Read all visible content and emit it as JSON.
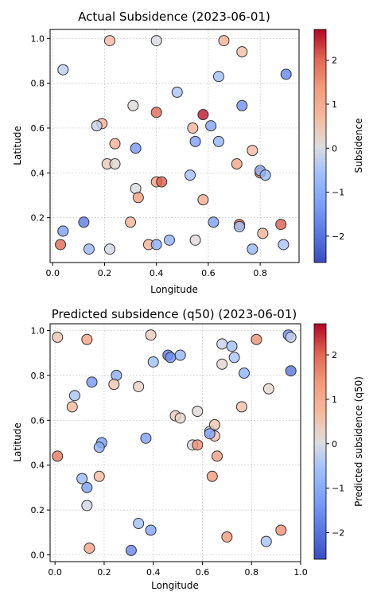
{
  "chart_data": [
    {
      "type": "scatter",
      "title": "Actual Subsidence (2023-06-01)",
      "xlabel": "Longitude",
      "ylabel": "Latitude",
      "colorbar_label": "Subsidence",
      "colormap": "coolwarm",
      "vmin": -2.6,
      "vmax": 2.7,
      "xlim": [
        -0.01,
        0.95
      ],
      "ylim": [
        0.0,
        1.04
      ],
      "xticks": [
        0.0,
        0.2,
        0.4,
        0.6,
        0.8
      ],
      "xtick_labels": [
        "0.0",
        "0.2",
        "0.4",
        "0.6",
        "0.8"
      ],
      "yticks": [
        0.2,
        0.4,
        0.6,
        0.8,
        1.0
      ],
      "ytick_labels": [
        "0.2",
        "0.4",
        "0.6",
        "0.8",
        "1.0"
      ],
      "cbar_ticks": [
        -2,
        -1,
        0,
        1,
        2
      ],
      "cbar_tick_labels": [
        "−2",
        "−1",
        "0",
        "1",
        "2"
      ],
      "grid": true,
      "points": [
        {
          "x": 0.04,
          "y": 0.86,
          "v": -0.3
        },
        {
          "x": 0.22,
          "y": 0.99,
          "v": 0.7
        },
        {
          "x": 0.4,
          "y": 0.99,
          "v": 0.0
        },
        {
          "x": 0.66,
          "y": 0.99,
          "v": 0.9
        },
        {
          "x": 0.73,
          "y": 0.94,
          "v": 0.6
        },
        {
          "x": 0.9,
          "y": 0.84,
          "v": -1.7
        },
        {
          "x": 0.48,
          "y": 0.76,
          "v": -0.5
        },
        {
          "x": 0.64,
          "y": 0.83,
          "v": -0.6
        },
        {
          "x": 0.31,
          "y": 0.7,
          "v": 0.1
        },
        {
          "x": 0.4,
          "y": 0.67,
          "v": 2.0
        },
        {
          "x": 0.58,
          "y": 0.66,
          "v": 2.6
        },
        {
          "x": 0.73,
          "y": 0.7,
          "v": -1.5
        },
        {
          "x": 0.19,
          "y": 0.62,
          "v": 0.9
        },
        {
          "x": 0.17,
          "y": 0.61,
          "v": -0.2
        },
        {
          "x": 0.54,
          "y": 0.6,
          "v": 0.8
        },
        {
          "x": 0.61,
          "y": 0.61,
          "v": -1.2
        },
        {
          "x": 0.24,
          "y": 0.53,
          "v": 0.9
        },
        {
          "x": 0.32,
          "y": 0.51,
          "v": -1.4
        },
        {
          "x": 0.55,
          "y": 0.54,
          "v": -1.3
        },
        {
          "x": 0.64,
          "y": 0.54,
          "v": -0.8
        },
        {
          "x": 0.77,
          "y": 0.5,
          "v": 0.7
        },
        {
          "x": 0.21,
          "y": 0.44,
          "v": 0.4
        },
        {
          "x": 0.24,
          "y": 0.44,
          "v": 0.2
        },
        {
          "x": 0.53,
          "y": 0.39,
          "v": -0.6
        },
        {
          "x": 0.71,
          "y": 0.44,
          "v": 1.2
        },
        {
          "x": 0.8,
          "y": 0.4,
          "v": 1.9
        },
        {
          "x": 0.8,
          "y": 0.41,
          "v": -0.9
        },
        {
          "x": 0.82,
          "y": 0.39,
          "v": -0.7
        },
        {
          "x": 0.32,
          "y": 0.33,
          "v": 0.0
        },
        {
          "x": 0.4,
          "y": 0.36,
          "v": 1.3
        },
        {
          "x": 0.42,
          "y": 0.36,
          "v": 2.1
        },
        {
          "x": 0.33,
          "y": 0.29,
          "v": 1.3
        },
        {
          "x": 0.58,
          "y": 0.28,
          "v": 1.0
        },
        {
          "x": 0.04,
          "y": 0.14,
          "v": -1.3
        },
        {
          "x": 0.12,
          "y": 0.18,
          "v": -1.9
        },
        {
          "x": 0.3,
          "y": 0.18,
          "v": 0.9
        },
        {
          "x": 0.62,
          "y": 0.18,
          "v": -1.3
        },
        {
          "x": 0.72,
          "y": 0.17,
          "v": 2.0
        },
        {
          "x": 0.72,
          "y": 0.16,
          "v": -0.5
        },
        {
          "x": 0.88,
          "y": 0.17,
          "v": 2.1
        },
        {
          "x": 0.81,
          "y": 0.13,
          "v": 0.9
        },
        {
          "x": 0.03,
          "y": 0.08,
          "v": 2.0
        },
        {
          "x": 0.14,
          "y": 0.06,
          "v": -0.8
        },
        {
          "x": 0.22,
          "y": 0.06,
          "v": -0.1
        },
        {
          "x": 0.37,
          "y": 0.08,
          "v": 0.9
        },
        {
          "x": 0.4,
          "y": 0.08,
          "v": -1.0
        },
        {
          "x": 0.45,
          "y": 0.1,
          "v": -0.9
        },
        {
          "x": 0.55,
          "y": 0.1,
          "v": 0.1
        },
        {
          "x": 0.77,
          "y": 0.06,
          "v": -0.8
        },
        {
          "x": 0.89,
          "y": 0.08,
          "v": -0.5
        }
      ]
    },
    {
      "type": "scatter",
      "title": "Predicted subsidence (q50) (2023-06-01)",
      "xlabel": "Longitude",
      "ylabel": "Latitude",
      "colorbar_label": "Predicted subsidence (q50)",
      "colormap": "coolwarm",
      "vmin": -2.6,
      "vmax": 2.7,
      "xlim": [
        -0.02,
        1.0
      ],
      "ylim": [
        -0.03,
        1.03
      ],
      "xticks": [
        0.0,
        0.2,
        0.4,
        0.6,
        0.8,
        1.0
      ],
      "xtick_labels": [
        "0.0",
        "0.2",
        "0.4",
        "0.6",
        "0.8",
        "1.0"
      ],
      "yticks": [
        0.0,
        0.2,
        0.4,
        0.6,
        0.8,
        1.0
      ],
      "ytick_labels": [
        "0.0",
        "0.2",
        "0.4",
        "0.6",
        "0.8",
        "1.0"
      ],
      "cbar_ticks": [
        -2,
        -1,
        0,
        1,
        2
      ],
      "cbar_tick_labels": [
        "−2",
        "−1",
        "0",
        "1",
        "2"
      ],
      "grid": true,
      "points": [
        {
          "x": 0.01,
          "y": 0.97,
          "v": 0.5
        },
        {
          "x": 0.13,
          "y": 0.96,
          "v": 1.2
        },
        {
          "x": 0.39,
          "y": 0.98,
          "v": 0.4
        },
        {
          "x": 0.4,
          "y": 0.86,
          "v": -0.6
        },
        {
          "x": 0.46,
          "y": 0.89,
          "v": -1.8
        },
        {
          "x": 0.47,
          "y": 0.88,
          "v": -1.5
        },
        {
          "x": 0.51,
          "y": 0.89,
          "v": -0.8
        },
        {
          "x": 0.68,
          "y": 0.94,
          "v": -0.2
        },
        {
          "x": 0.72,
          "y": 0.93,
          "v": -0.6
        },
        {
          "x": 0.73,
          "y": 0.88,
          "v": -0.5
        },
        {
          "x": 0.82,
          "y": 0.96,
          "v": 1.5
        },
        {
          "x": 0.95,
          "y": 0.98,
          "v": -1.5
        },
        {
          "x": 0.96,
          "y": 0.97,
          "v": -0.2
        },
        {
          "x": 0.68,
          "y": 0.85,
          "v": 0.2
        },
        {
          "x": 0.77,
          "y": 0.81,
          "v": -0.9
        },
        {
          "x": 0.96,
          "y": 0.82,
          "v": -2.0
        },
        {
          "x": 0.87,
          "y": 0.74,
          "v": 0.2
        },
        {
          "x": 0.08,
          "y": 0.71,
          "v": -0.5
        },
        {
          "x": 0.15,
          "y": 0.77,
          "v": -1.4
        },
        {
          "x": 0.25,
          "y": 0.8,
          "v": -1.0
        },
        {
          "x": 0.24,
          "y": 0.76,
          "v": 0.5
        },
        {
          "x": 0.34,
          "y": 0.75,
          "v": 0.3
        },
        {
          "x": 0.07,
          "y": 0.66,
          "v": 0.7
        },
        {
          "x": 0.49,
          "y": 0.62,
          "v": 0.4
        },
        {
          "x": 0.51,
          "y": 0.61,
          "v": 0.2
        },
        {
          "x": 0.58,
          "y": 0.64,
          "v": 0.1
        },
        {
          "x": 0.76,
          "y": 0.66,
          "v": 0.6
        },
        {
          "x": 0.63,
          "y": 0.55,
          "v": -0.3
        },
        {
          "x": 0.65,
          "y": 0.58,
          "v": 0.5
        },
        {
          "x": 0.65,
          "y": 0.53,
          "v": 0.6
        },
        {
          "x": 0.63,
          "y": 0.54,
          "v": -1.1
        },
        {
          "x": 0.37,
          "y": 0.52,
          "v": -1.3
        },
        {
          "x": 0.56,
          "y": 0.49,
          "v": 0.0
        },
        {
          "x": 0.58,
          "y": 0.49,
          "v": 1.5
        },
        {
          "x": 0.19,
          "y": 0.5,
          "v": -1.3
        },
        {
          "x": 0.18,
          "y": 0.48,
          "v": -1.0
        },
        {
          "x": 0.01,
          "y": 0.44,
          "v": 1.8
        },
        {
          "x": 0.66,
          "y": 0.44,
          "v": 1.3
        },
        {
          "x": 0.18,
          "y": 0.35,
          "v": 0.7
        },
        {
          "x": 0.11,
          "y": 0.34,
          "v": -0.7
        },
        {
          "x": 0.13,
          "y": 0.3,
          "v": -1.3
        },
        {
          "x": 0.64,
          "y": 0.35,
          "v": 1.4
        },
        {
          "x": 0.13,
          "y": 0.22,
          "v": -0.1
        },
        {
          "x": 0.34,
          "y": 0.14,
          "v": -0.6
        },
        {
          "x": 0.39,
          "y": 0.11,
          "v": -1.2
        },
        {
          "x": 0.7,
          "y": 0.08,
          "v": 1.4
        },
        {
          "x": 0.86,
          "y": 0.06,
          "v": -0.5
        },
        {
          "x": 0.92,
          "y": 0.11,
          "v": 1.5
        },
        {
          "x": 0.14,
          "y": 0.03,
          "v": 1.2
        },
        {
          "x": 0.31,
          "y": 0.02,
          "v": -1.7
        }
      ]
    }
  ]
}
